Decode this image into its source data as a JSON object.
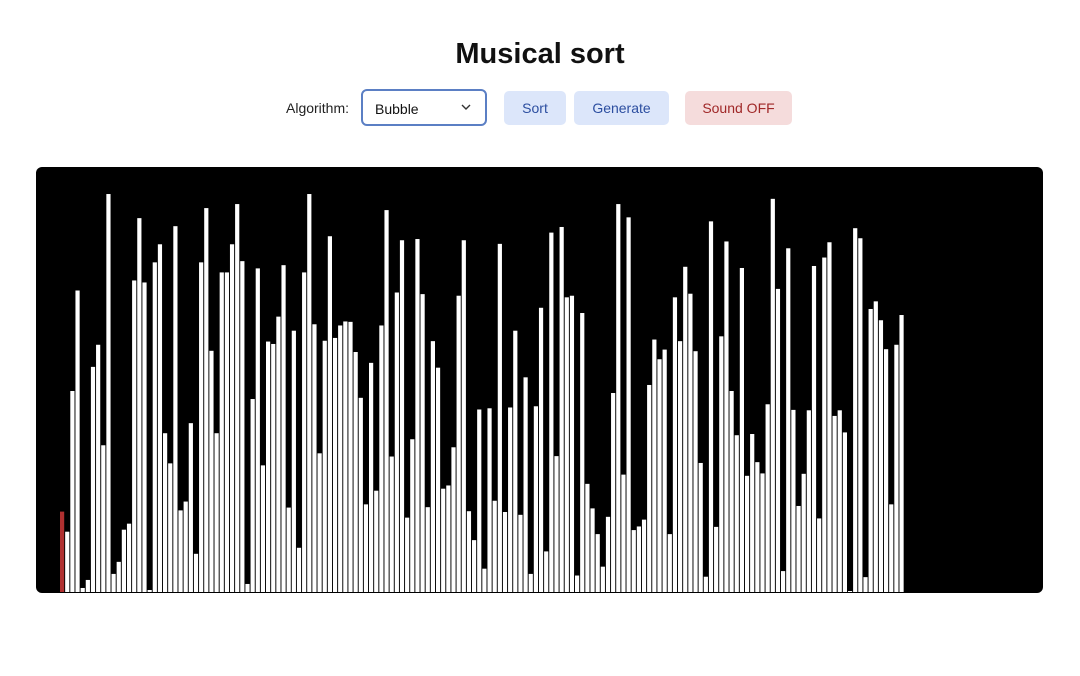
{
  "header": {
    "title": "Musical sort"
  },
  "controls": {
    "algorithm_label": "Algorithm:",
    "algorithm_selected": "Bubble",
    "sort_label": "Sort",
    "generate_label": "Generate",
    "sound_label": "Sound OFF"
  },
  "colors": {
    "bar": "#ffffff",
    "active_bar": "#b03030",
    "background": "#000000"
  },
  "chart_data": {
    "type": "bar",
    "active_index": 0,
    "ylim": [
      0,
      1
    ],
    "values": [
      0.2,
      0.15,
      0.5,
      0.75,
      0.01,
      0.03,
      0.56,
      0.615,
      0.365,
      0.99,
      0.045,
      0.075,
      0.155,
      0.17,
      0.775,
      0.93,
      0.77,
      0.005,
      0.82,
      0.865,
      0.395,
      0.32,
      0.91,
      0.203,
      0.225,
      0.42,
      0.095,
      0.82,
      0.955,
      0.6,
      0.395,
      0.795,
      0.795,
      0.865,
      0.965,
      0.823,
      0.02,
      0.48,
      0.805,
      0.315,
      0.623,
      0.617,
      0.685,
      0.813,
      0.21,
      0.65,
      0.11,
      0.795,
      0.99,
      0.666,
      0.345,
      0.625,
      0.885,
      0.632,
      0.663,
      0.673,
      0.672,
      0.597,
      0.483,
      0.218,
      0.57,
      0.252,
      0.663,
      0.95,
      0.337,
      0.745,
      0.875,
      0.185,
      0.38,
      0.878,
      0.741,
      0.211,
      0.624,
      0.558,
      0.257,
      0.265,
      0.36,
      0.737,
      0.875,
      0.201,
      0.129,
      0.454,
      0.058,
      0.457,
      0.227,
      0.866,
      0.199,
      0.459,
      0.65,
      0.192,
      0.534,
      0.045,
      0.462,
      0.707,
      0.101,
      0.894,
      0.338,
      0.908,
      0.733,
      0.737,
      0.041,
      0.694,
      0.269,
      0.208,
      0.144,
      0.063,
      0.187,
      0.495,
      0.965,
      0.292,
      0.932,
      0.154,
      0.163,
      0.18,
      0.515,
      0.628,
      0.579,
      0.603,
      0.144,
      0.733,
      0.624,
      0.809,
      0.742,
      0.599,
      0.321,
      0.038,
      0.922,
      0.162,
      0.636,
      0.872,
      0.5,
      0.39,
      0.806,
      0.289,
      0.393,
      0.323,
      0.295,
      0.467,
      0.978,
      0.754,
      0.052,
      0.855,
      0.453,
      0.214,
      0.294,
      0.452,
      0.811,
      0.183,
      0.832,
      0.87,
      0.438,
      0.452,
      0.397,
      0.002,
      0.905,
      0.88,
      0.037,
      0.704,
      0.723,
      0.676,
      0.604,
      0.218,
      0.615,
      0.689
    ]
  }
}
